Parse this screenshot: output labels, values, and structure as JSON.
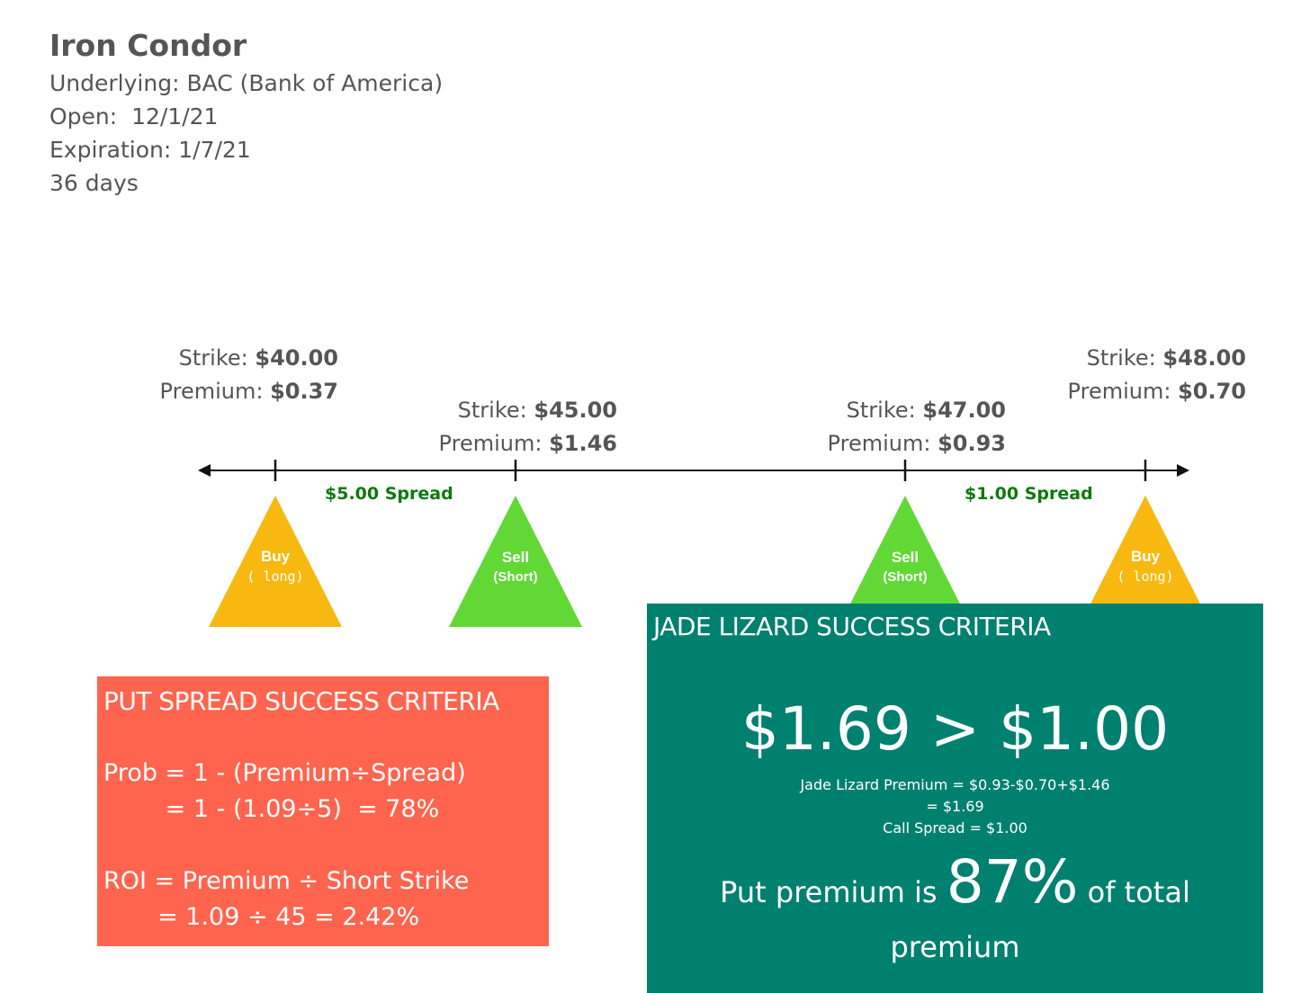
{
  "header": {
    "title": "Iron Condor",
    "underlying": "Underlying: BAC (Bank of America)",
    "open": "Open:  12/1/21",
    "expiration": "Expiration: 1/7/21",
    "days": "36 days"
  },
  "legs": [
    {
      "strike_label": "Strike:",
      "strike_value": "$40.00",
      "premium_label": "Premium:",
      "premium_value": "$0.37",
      "action": "Buy",
      "position": "( long)",
      "color": "#f7b80f"
    },
    {
      "strike_label": "Strike:",
      "strike_value": "$45.00",
      "premium_label": "Premium:",
      "premium_value": "$1.46",
      "action": "Sell",
      "position": "(Short)",
      "color": "#61d836"
    },
    {
      "strike_label": "Strike:",
      "strike_value": "$47.00",
      "premium_label": "Premium:",
      "premium_value": "$0.93",
      "action": "Sell",
      "position": "(Short)",
      "color": "#61d836"
    },
    {
      "strike_label": "Strike:",
      "strike_value": "$48.00",
      "premium_label": "Premium:",
      "premium_value": "$0.70",
      "action": "Buy",
      "position": "( long)",
      "color": "#f7b80f"
    }
  ],
  "spreads": {
    "put_spread": "$5.00 Spread",
    "call_spread": "$1.00 Spread"
  },
  "put_box": {
    "title": "PUT SPREAD SUCCESS CRITERIA",
    "prob_line1": "Prob = 1 - (Premium÷Spread)",
    "prob_line2": "        = 1 - (1.09÷5)  = 78%",
    "roi_line1": "ROI = Premium ÷ Short Strike",
    "roi_line2": "       = 1.09 ÷ 45 = 2.42%",
    "color": "#ff644e"
  },
  "jade_box": {
    "title": "JADE LIZARD SUCCESS CRITERIA",
    "big": "$1.69 > $1.00",
    "premium_line1": "Jade Lizard Premium =  $0.93-$0.70+$1.46",
    "premium_line2": "= $1.69",
    "call_spread_line": "Call Spread = $1.00",
    "put_prefix": "Put premium is ",
    "put_pct": "87%",
    "put_suffix": " of total",
    "put_end": "premium",
    "color": "#00806f"
  }
}
